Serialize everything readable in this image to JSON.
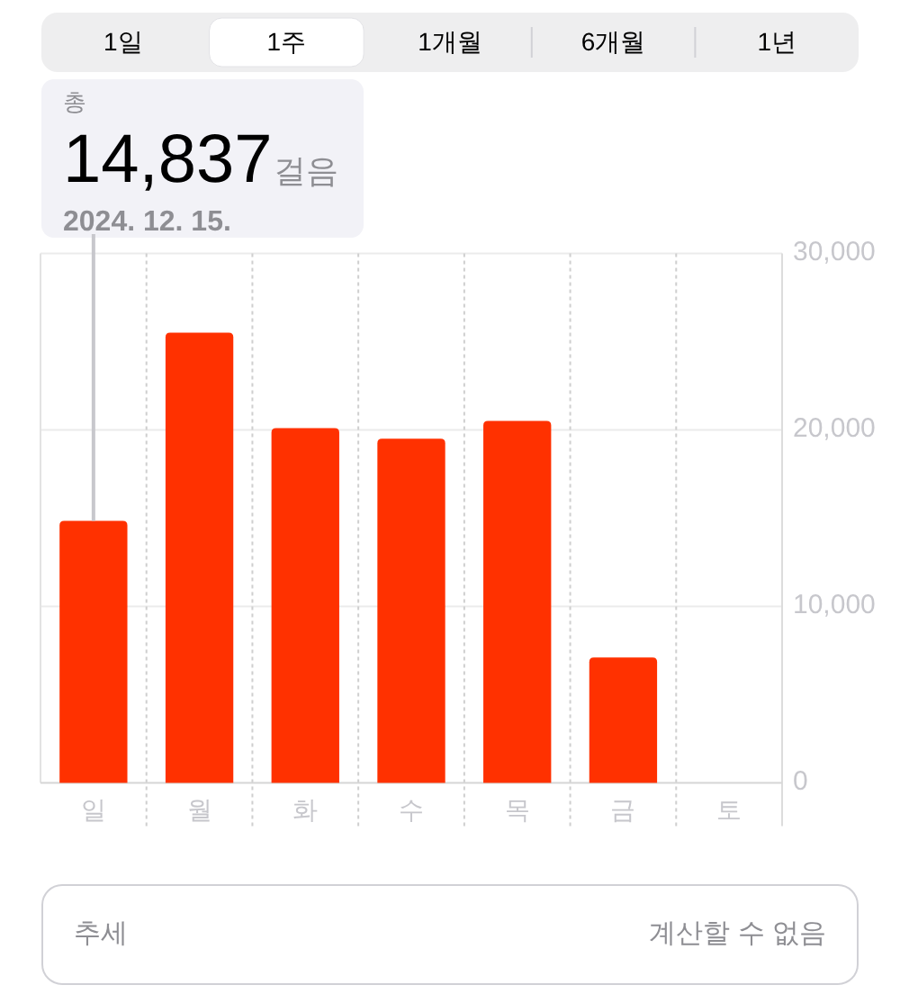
{
  "chart_data": [
    {
      "type": "other",
      "categories": [
        "1일",
        "1주",
        "1개월",
        "6개월",
        "1년"
      ]
    },
    {
      "type": "bar",
      "categories": [
        "일",
        "월",
        "화",
        "수",
        "목",
        "금",
        "토"
      ],
      "values": [
        14837,
        25500,
        20100,
        19500,
        20500,
        7100,
        null
      ],
      "color": "#ff3100",
      "ylim": [
        0,
        30000
      ],
      "yticks": [
        0,
        {
          "value": 10000,
          "label": "10,000"
        },
        {
          "value": 20000,
          "label": "20,000"
        },
        {
          "value": 30000,
          "label": "30,000"
        }
      ],
      "grid": true,
      "annotations": [
        "총",
        "14,837걸음",
        {
          "text": "2024. 12. 15.",
          "x": "일",
          "y": 14837
        }
      ]
    },
    {
      "type": "other",
      "annotations": [
        "추세",
        "계산할 수 없음"
      ]
    }
  ]
}
